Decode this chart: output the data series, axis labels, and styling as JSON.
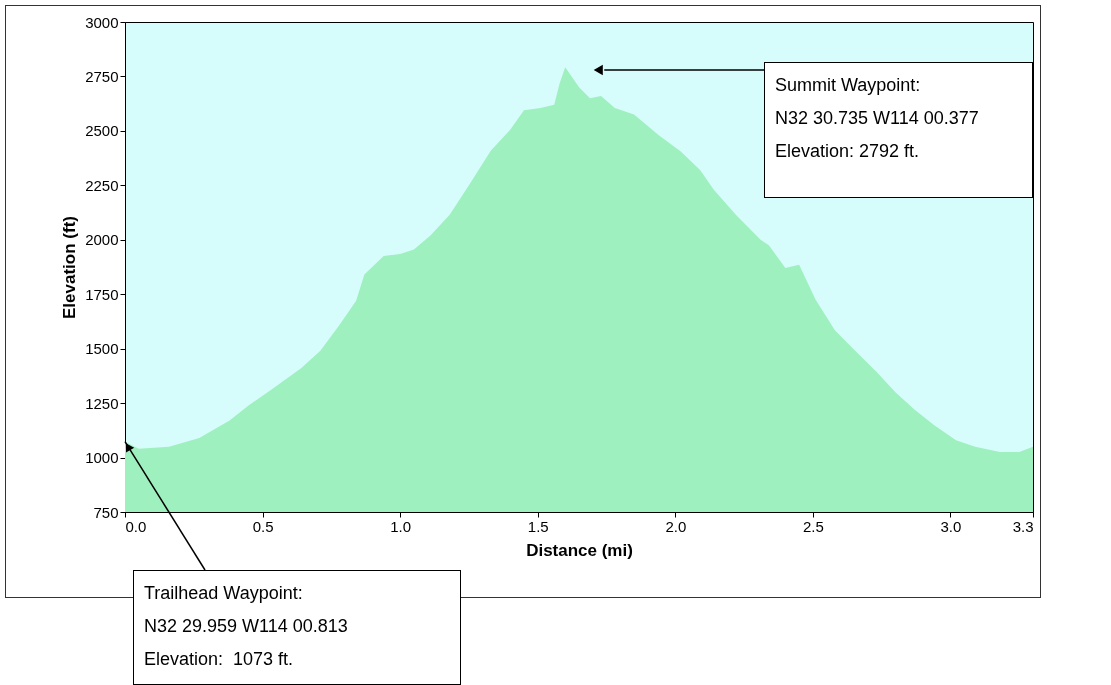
{
  "chart_data": {
    "type": "area",
    "xlabel": "Distance  (mi)",
    "ylabel": "Elevation (ft)",
    "x": [
      0,
      0.05,
      0.16,
      0.27,
      0.38,
      0.45,
      0.53,
      0.64,
      0.71,
      0.78,
      0.84,
      0.87,
      0.94,
      1.0,
      1.05,
      1.11,
      1.18,
      1.25,
      1.33,
      1.4,
      1.45,
      1.51,
      1.56,
      1.58,
      1.6,
      1.65,
      1.69,
      1.73,
      1.78,
      1.85,
      1.94,
      2.02,
      2.09,
      2.14,
      2.22,
      2.31,
      2.34,
      2.4,
      2.45,
      2.51,
      2.58,
      2.65,
      2.73,
      2.8,
      2.87,
      2.94,
      3.02,
      3.09,
      3.18,
      3.25,
      3.3
    ],
    "series": [
      {
        "color": "#9ef0be",
        "values": [
          1073,
          1040,
          1050,
          1090,
          1170,
          1240,
          1310,
          1410,
          1490,
          1610,
          1720,
          1840,
          1925,
          1935,
          1955,
          2020,
          2115,
          2250,
          2410,
          2505,
          2595,
          2605,
          2620,
          2720,
          2792,
          2700,
          2650,
          2660,
          2605,
          2575,
          2480,
          2405,
          2320,
          2230,
          2115,
          2000,
          1975,
          1870,
          1885,
          1725,
          1585,
          1495,
          1395,
          1300,
          1220,
          1150,
          1080,
          1050,
          1025,
          1025,
          1050
        ]
      }
    ],
    "xlim": [
      0,
      3.3
    ],
    "ylim": [
      750,
      3000
    ],
    "xticks": [
      {
        "value": 0,
        "label": "0.0"
      },
      0.5,
      {
        "value": 1,
        "label": "1.0"
      },
      1.5,
      {
        "value": 2,
        "label": "2.0"
      },
      2.5,
      {
        "value": 3,
        "label": "3.0"
      },
      3.3
    ],
    "yticks": [
      750,
      1000,
      1250,
      1500,
      1750,
      2000,
      2250,
      2500,
      2750,
      3000
    ],
    "annotations": [
      {
        "text": "Summit Waypoint:\nN32 30.735 W114 00.377\nElevation: 2792 ft.",
        "x": 1.72,
        "y": 2780
      },
      {
        "text": "Trailhead Waypoint:\nN32 29.959 W114 00.813\nElevation:  1073 ft.",
        "x": 0,
        "y": 1073
      }
    ],
    "tick_labels": null
  }
}
